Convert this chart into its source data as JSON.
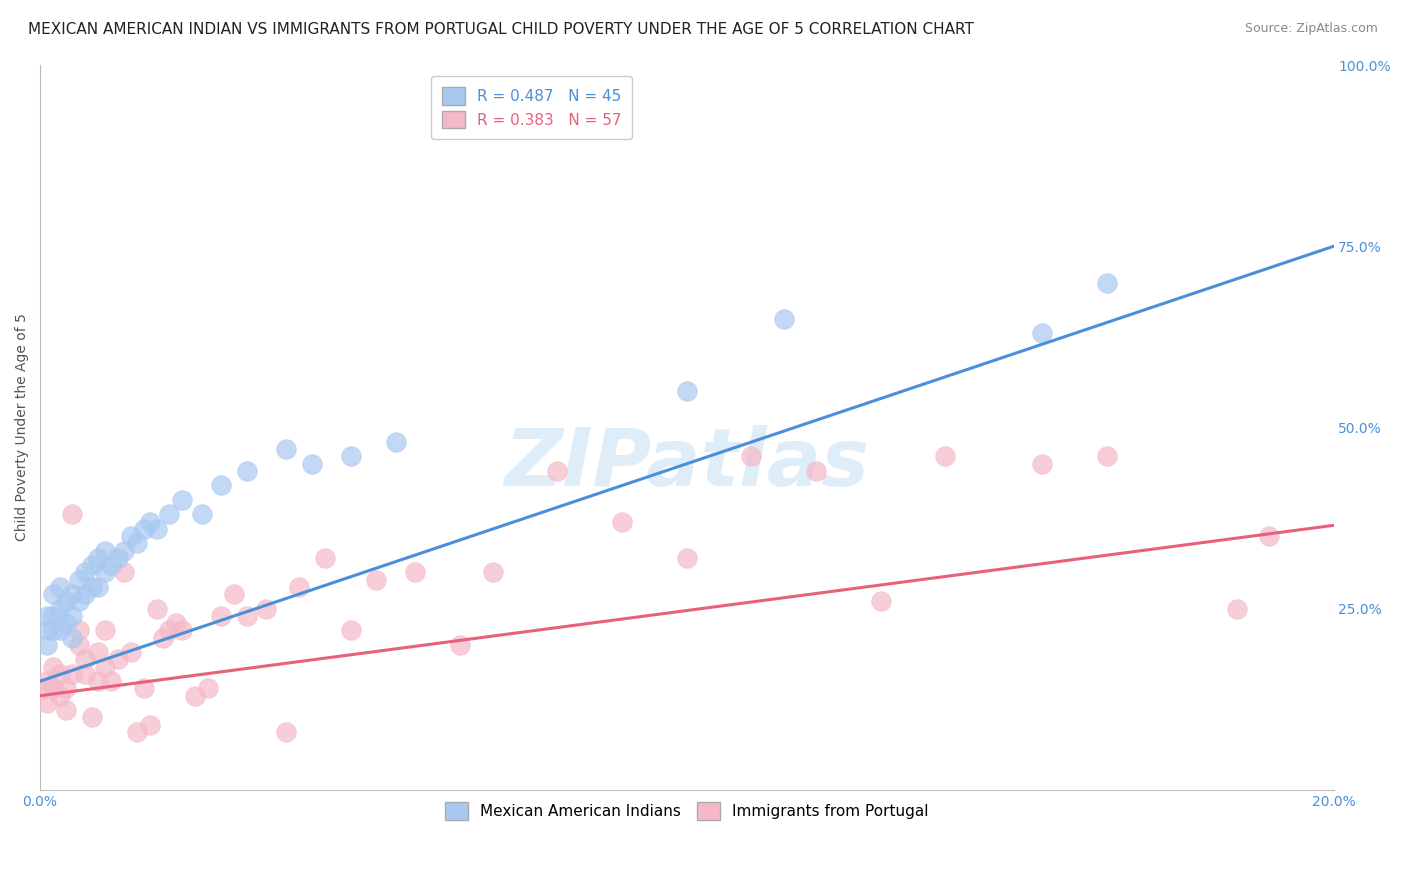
{
  "title": "MEXICAN AMERICAN INDIAN VS IMMIGRANTS FROM PORTUGAL CHILD POVERTY UNDER THE AGE OF 5 CORRELATION CHART",
  "source": "Source: ZipAtlas.com",
  "ylabel": "Child Poverty Under the Age of 5",
  "xlim": [
    0.0,
    0.2
  ],
  "ylim": [
    0.0,
    1.0
  ],
  "xtick_labels": [
    "0.0%",
    "20.0%"
  ],
  "ytick_positions": [
    0.0,
    0.25,
    0.5,
    0.75,
    1.0
  ],
  "ytick_labels": [
    "",
    "25.0%",
    "50.0%",
    "75.0%",
    "100.0%"
  ],
  "watermark": "ZIPatlas",
  "blue_R": 0.487,
  "blue_N": 45,
  "pink_R": 0.383,
  "pink_N": 57,
  "blue_color": "#a8c8f0",
  "pink_color": "#f5b8c8",
  "blue_line_color": "#4a90d9",
  "pink_line_color": "#e8607a",
  "blue_line_x0": 0.0,
  "blue_line_y0": 0.15,
  "blue_line_x1": 0.2,
  "blue_line_y1": 0.75,
  "pink_line_x0": 0.0,
  "pink_line_y0": 0.13,
  "pink_line_x1": 0.2,
  "pink_line_y1": 0.365,
  "blue_scatter_x": [
    0.001,
    0.001,
    0.001,
    0.002,
    0.002,
    0.002,
    0.003,
    0.003,
    0.003,
    0.004,
    0.004,
    0.005,
    0.005,
    0.005,
    0.006,
    0.006,
    0.007,
    0.007,
    0.008,
    0.008,
    0.009,
    0.009,
    0.01,
    0.01,
    0.011,
    0.012,
    0.013,
    0.014,
    0.015,
    0.016,
    0.017,
    0.018,
    0.02,
    0.022,
    0.025,
    0.028,
    0.032,
    0.038,
    0.042,
    0.048,
    0.055,
    0.1,
    0.115,
    0.155,
    0.165
  ],
  "blue_scatter_y": [
    0.2,
    0.22,
    0.24,
    0.22,
    0.24,
    0.27,
    0.22,
    0.25,
    0.28,
    0.23,
    0.26,
    0.21,
    0.24,
    0.27,
    0.26,
    0.29,
    0.27,
    0.3,
    0.28,
    0.31,
    0.28,
    0.32,
    0.3,
    0.33,
    0.31,
    0.32,
    0.33,
    0.35,
    0.34,
    0.36,
    0.37,
    0.36,
    0.38,
    0.4,
    0.38,
    0.42,
    0.44,
    0.47,
    0.45,
    0.46,
    0.48,
    0.55,
    0.65,
    0.63,
    0.7
  ],
  "pink_scatter_x": [
    0.0005,
    0.001,
    0.001,
    0.002,
    0.002,
    0.003,
    0.003,
    0.004,
    0.004,
    0.005,
    0.005,
    0.006,
    0.006,
    0.007,
    0.007,
    0.008,
    0.009,
    0.009,
    0.01,
    0.01,
    0.011,
    0.012,
    0.013,
    0.014,
    0.015,
    0.016,
    0.017,
    0.018,
    0.019,
    0.02,
    0.021,
    0.022,
    0.024,
    0.026,
    0.028,
    0.03,
    0.032,
    0.035,
    0.038,
    0.04,
    0.044,
    0.048,
    0.052,
    0.058,
    0.065,
    0.07,
    0.08,
    0.09,
    0.1,
    0.11,
    0.12,
    0.13,
    0.14,
    0.155,
    0.165,
    0.185,
    0.19
  ],
  "pink_scatter_y": [
    0.14,
    0.15,
    0.12,
    0.14,
    0.17,
    0.13,
    0.16,
    0.14,
    0.11,
    0.16,
    0.38,
    0.2,
    0.22,
    0.18,
    0.16,
    0.1,
    0.19,
    0.15,
    0.17,
    0.22,
    0.15,
    0.18,
    0.3,
    0.19,
    0.08,
    0.14,
    0.09,
    0.25,
    0.21,
    0.22,
    0.23,
    0.22,
    0.13,
    0.14,
    0.24,
    0.27,
    0.24,
    0.25,
    0.08,
    0.28,
    0.32,
    0.22,
    0.29,
    0.3,
    0.2,
    0.3,
    0.44,
    0.37,
    0.32,
    0.46,
    0.44,
    0.26,
    0.46,
    0.45,
    0.46,
    0.25,
    0.35
  ],
  "background_color": "#ffffff",
  "grid_color": "#dddddd",
  "title_fontsize": 11,
  "axis_label_fontsize": 10,
  "tick_fontsize": 10,
  "legend_fontsize": 11
}
